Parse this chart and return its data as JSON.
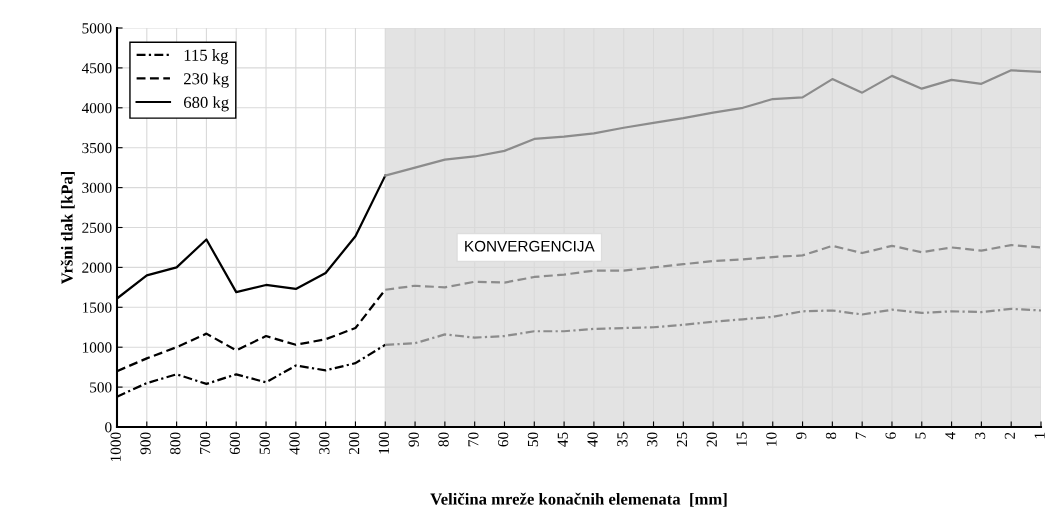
{
  "chart_data": {
    "type": "line",
    "xlabel": "Veličina mreže konačnih elemenata  [mm]",
    "ylabel": "Vršni tlak [kPa]",
    "categories": [
      "1000",
      "900",
      "800",
      "700",
      "600",
      "500",
      "400",
      "300",
      "200",
      "100",
      "90",
      "80",
      "70",
      "60",
      "50",
      "45",
      "40",
      "35",
      "30",
      "25",
      "20",
      "15",
      "10",
      "9",
      "8",
      "7",
      "6",
      "5",
      "4",
      "3",
      "2",
      "1"
    ],
    "series": [
      {
        "name": "115 kg",
        "color": "#000000",
        "line_style": "dashdot",
        "values": [
          380,
          550,
          660,
          540,
          660,
          560,
          770,
          710,
          800,
          1030,
          null,
          null,
          null,
          null,
          null,
          null,
          null,
          null,
          null,
          null,
          null,
          null,
          null,
          null,
          null,
          null,
          null,
          null,
          null,
          null,
          null,
          null
        ]
      },
      {
        "name": "230 kg",
        "color": "#000000",
        "line_style": "dashed",
        "values": [
          700,
          860,
          1000,
          1170,
          960,
          1140,
          1030,
          1100,
          1240,
          1720,
          null,
          null,
          null,
          null,
          null,
          null,
          null,
          null,
          null,
          null,
          null,
          null,
          null,
          null,
          null,
          null,
          null,
          null,
          null,
          null,
          null,
          null
        ]
      },
      {
        "name": "680 kg",
        "color": "#000000",
        "line_style": "solid",
        "values": [
          1610,
          1900,
          2000,
          2350,
          1690,
          1780,
          1730,
          1930,
          2390,
          3150,
          null,
          null,
          null,
          null,
          null,
          null,
          null,
          null,
          null,
          null,
          null,
          null,
          null,
          null,
          null,
          null,
          null,
          null,
          null,
          null,
          null,
          null
        ]
      },
      {
        "color": "#8c8c8c",
        "line_style": "dashdot",
        "values": [
          null,
          null,
          null,
          null,
          null,
          null,
          null,
          null,
          null,
          1030,
          1050,
          1160,
          1120,
          1140,
          1200,
          1200,
          1230,
          1240,
          1250,
          1280,
          1320,
          1350,
          1380,
          1450,
          1460,
          1410,
          1470,
          1430,
          1450,
          1440,
          1480,
          1460
        ]
      },
      {
        "color": "#8c8c8c",
        "line_style": "dashed",
        "values": [
          null,
          null,
          null,
          null,
          null,
          null,
          null,
          null,
          null,
          1720,
          1770,
          1750,
          1820,
          1810,
          1880,
          1910,
          1960,
          1960,
          2000,
          2040,
          2080,
          2100,
          2130,
          2150,
          2270,
          2180,
          2270,
          2190,
          2250,
          2210,
          2280,
          2250
        ]
      },
      {
        "color": "#8c8c8c",
        "line_style": "solid",
        "values": [
          null,
          null,
          null,
          null,
          null,
          null,
          null,
          null,
          null,
          3150,
          3250,
          3350,
          3390,
          3460,
          3610,
          3640,
          3680,
          3750,
          3810,
          3870,
          3940,
          4000,
          4110,
          4130,
          4360,
          4190,
          4400,
          4240,
          4350,
          4300,
          4470,
          4450
        ]
      }
    ],
    "ylim": [
      0,
      5000
    ],
    "yticks": [
      0,
      500,
      1000,
      1500,
      2000,
      2500,
      3000,
      3500,
      4000,
      4500,
      5000
    ],
    "bands": [
      {
        "axis": "x",
        "from": "100",
        "to": "1",
        "label": "KONVERGENCIJA",
        "color": "#e3e3e3"
      }
    ],
    "grid": true,
    "legend": "top left"
  }
}
